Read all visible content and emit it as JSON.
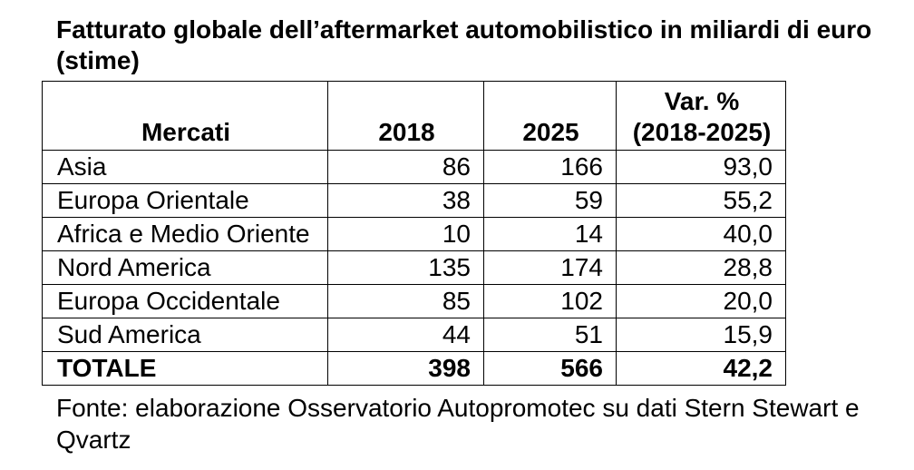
{
  "title": "Fatturato globale dell’aftermarket automobilistico in miliardi di euro (stime)",
  "table": {
    "headers": {
      "market": "Mercati",
      "y2018": "2018",
      "y2025": "2025",
      "var_line1": "Var. %",
      "var_line2": "(2018-2025)"
    },
    "rows": [
      {
        "market": "Asia",
        "y2018": "86",
        "y2025": "166",
        "var": "93,0"
      },
      {
        "market": "Europa Orientale",
        "y2018": "38",
        "y2025": "59",
        "var": "55,2"
      },
      {
        "market": "Africa e Medio Oriente",
        "y2018": "10",
        "y2025": "14",
        "var": "40,0"
      },
      {
        "market": "Nord America",
        "y2018": "135",
        "y2025": "174",
        "var": "28,8"
      },
      {
        "market": "Europa Occidentale",
        "y2018": "85",
        "y2025": "102",
        "var": "20,0"
      },
      {
        "market": "Sud America",
        "y2018": "44",
        "y2025": "51",
        "var": "15,9"
      }
    ],
    "total": {
      "market": "TOTALE",
      "y2018": "398",
      "y2025": "566",
      "var": "42,2"
    }
  },
  "source": "Fonte: elaborazione Osservatorio Autopromotec su dati Stern Stewart e Qvartz"
}
